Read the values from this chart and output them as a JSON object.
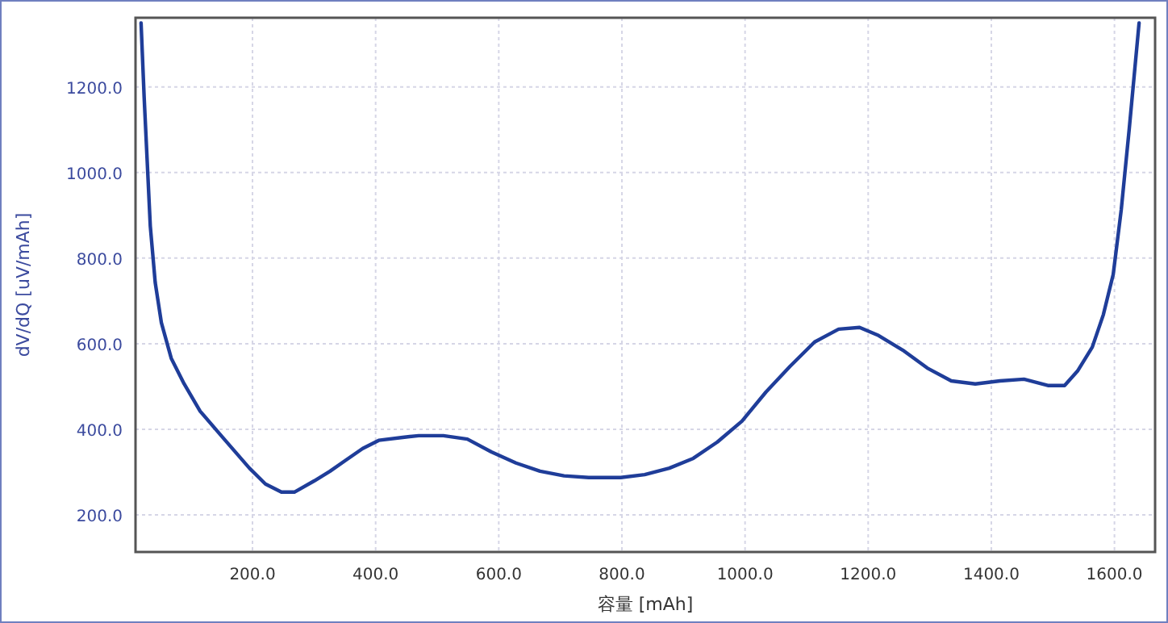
{
  "chart_data": {
    "type": "line",
    "xlabel": "容量 [mAh]",
    "ylabel": "dV/dQ [uV/mAh]",
    "xlim": [
      10,
      1666
    ],
    "ylim": [
      113,
      1362
    ],
    "xticks": [
      {
        "value": 200,
        "label": "200.0"
      },
      {
        "value": 400,
        "label": "400.0"
      },
      {
        "value": 600,
        "label": "600.0"
      },
      {
        "value": 800,
        "label": "800.0"
      },
      {
        "value": 1000,
        "label": "1000.0"
      },
      {
        "value": 1200,
        "label": "1200.0"
      },
      {
        "value": 1400,
        "label": "1400.0"
      },
      {
        "value": 1600,
        "label": "1600.0"
      }
    ],
    "yticks": [
      {
        "value": 200,
        "label": "200.0"
      },
      {
        "value": 400,
        "label": "400.0"
      },
      {
        "value": 600,
        "label": "600.0"
      },
      {
        "value": 800,
        "label": "800.0"
      },
      {
        "value": 1000,
        "label": "1000.0"
      },
      {
        "value": 1200,
        "label": "1200.0"
      }
    ],
    "grid": true,
    "marker": "none",
    "line_style": "solid",
    "series": [
      {
        "color": "#1f3d99",
        "x": [
          19,
          24,
          29,
          34,
          42,
          52,
          68,
          89,
          115,
          154,
          195,
          221,
          247,
          268,
          300,
          326,
          352,
          379,
          405,
          444,
          470,
          510,
          549,
          588,
          628,
          667,
          706,
          746,
          798,
          837,
          877,
          916,
          955,
          995,
          1034,
          1073,
          1113,
          1152,
          1186,
          1217,
          1256,
          1296,
          1335,
          1374,
          1414,
          1453,
          1493,
          1519,
          1540,
          1564,
          1582,
          1598,
          1611,
          1624,
          1640
        ],
        "values": [
          1350,
          1177,
          1026,
          875,
          743,
          649,
          566,
          506,
          442,
          377,
          309,
          272,
          253,
          253,
          279,
          302,
          328,
          355,
          374,
          381,
          385,
          385,
          377,
          347,
          321,
          302,
          291,
          287,
          287,
          294,
          309,
          332,
          370,
          419,
          487,
          547,
          604,
          634,
          638,
          619,
          585,
          543,
          513,
          506,
          513,
          517,
          502,
          502,
          536,
          592,
          668,
          762,
          913,
          1102,
          1350
        ]
      }
    ]
  }
}
